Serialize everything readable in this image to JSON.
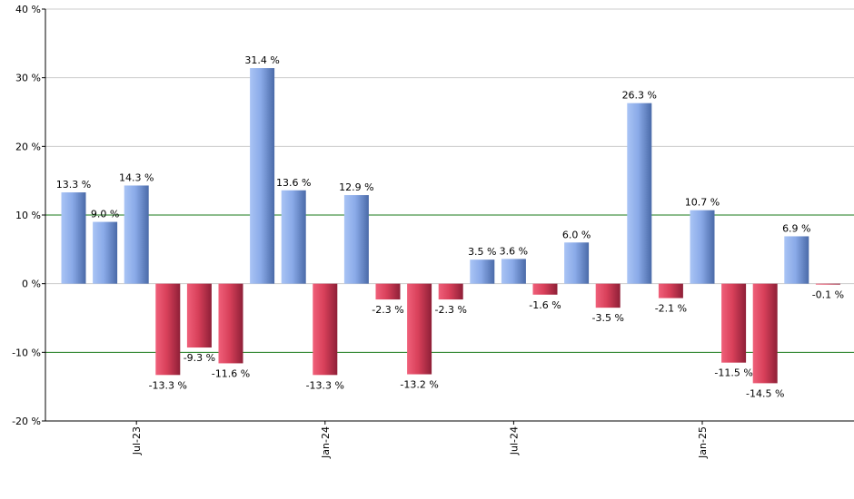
{
  "chart_data": {
    "type": "bar",
    "title": "",
    "xlabel": "",
    "ylabel": "",
    "ylim": [
      -20,
      40
    ],
    "yticks": [
      -20,
      -10,
      0,
      10,
      20,
      30,
      40
    ],
    "ytick_labels": [
      "-20 %",
      "-10 %",
      "0 %",
      "10 %",
      "20 %",
      "30 %",
      "40 %"
    ],
    "x_tick_labels": [
      {
        "label": "Jul-23",
        "bar_index": 2
      },
      {
        "label": "Jan-24",
        "bar_index": 8
      },
      {
        "label": "Jul-24",
        "bar_index": 14
      },
      {
        "label": "Jan-25",
        "bar_index": 20
      }
    ],
    "values": [
      13.3,
      9.0,
      14.3,
      -13.3,
      -9.3,
      -11.6,
      31.4,
      13.6,
      -13.3,
      12.9,
      -2.3,
      -13.2,
      -2.3,
      3.5,
      3.6,
      -1.6,
      6.0,
      -3.5,
      26.3,
      -2.1,
      10.7,
      -11.5,
      -14.5,
      6.9,
      -0.1
    ],
    "data_labels": [
      "13.3 %",
      "9.0 %",
      "14.3 %",
      "-13.3 %",
      "-9.3 %",
      "-11.6 %",
      "31.4 %",
      "13.6 %",
      "-13.3 %",
      "12.9 %",
      "-2.3 %",
      "-13.2 %",
      "-2.3 %",
      "3.5 %",
      "3.6 %",
      "-1.6 %",
      "6.0 %",
      "-3.5 %",
      "26.3 %",
      "-2.1 %",
      "10.7 %",
      "-11.5 %",
      "-14.5 %",
      "6.9 %",
      "-0.1 %"
    ],
    "green_lines_at": [
      10,
      -10
    ],
    "grid": true,
    "colors": {
      "positive_dark": "#4a6aa8",
      "positive_light": "#a9c4f5",
      "negative_dark": "#8e1f37",
      "negative_light": "#f0607a",
      "grid": "#cccccc",
      "green_line": "#1a7a1a",
      "axis": "#000000"
    }
  }
}
